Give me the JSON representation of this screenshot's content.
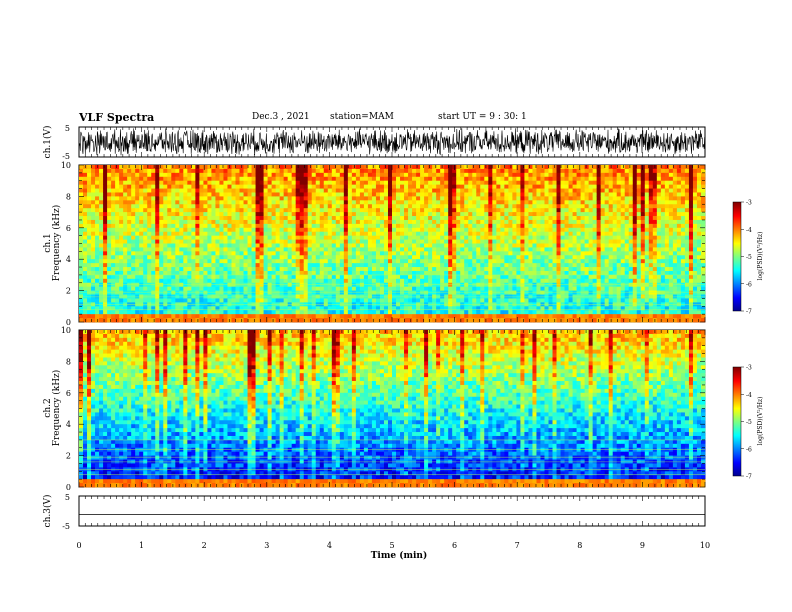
{
  "header": {
    "title": "VLF Spectra",
    "date": "Dec.3 , 2021",
    "station": "station=MAM",
    "start": "start UT = 9 : 30: 1"
  },
  "chart_data": [
    {
      "type": "line",
      "panel": "ch1-waveform",
      "ylabel": "ch.1(V)",
      "yticks": [
        "5",
        "-5"
      ],
      "ylim": [
        -5,
        5
      ],
      "xlim": [
        0,
        10
      ],
      "signal": "saturated broadband noise, amplitude about +/-5 V over full interval",
      "colors": {
        "trace": "#000000"
      }
    },
    {
      "type": "heatmap",
      "panel": "ch1-spectrogram",
      "ylabel_top": "ch.1",
      "ylabel": "Frequency (kHz)",
      "yticks": [
        "0",
        "2",
        "4",
        "6",
        "8",
        "10"
      ],
      "ylim": [
        0,
        10
      ],
      "xlim": [
        0,
        10
      ],
      "colorbar": {
        "label": "log(PSD)(V²/Hz)",
        "ticks": [
          "-3",
          "-4",
          "-5",
          "-6",
          "-7"
        ],
        "range": [
          -7,
          -3
        ]
      },
      "description_levels": {
        "low_freq_band": -5.5,
        "mid": -5.0,
        "high_freq": -4.0
      }
    },
    {
      "type": "heatmap",
      "panel": "ch2-spectrogram",
      "ylabel_top": "ch.2",
      "ylabel": "Frequency (kHz)",
      "yticks": [
        "0",
        "2",
        "4",
        "6",
        "8",
        "10"
      ],
      "ylim": [
        0,
        10
      ],
      "xlim": [
        0,
        10
      ],
      "colorbar": {
        "label": "log(PSD)(V²/Hz)",
        "ticks": [
          "-3",
          "-4",
          "-5",
          "-6",
          "-7"
        ],
        "range": [
          -7,
          -3
        ]
      },
      "description_levels": {
        "low_freq_band": -6.3,
        "mid": -5.3,
        "high_freq": -4.0
      }
    },
    {
      "type": "line",
      "panel": "ch3-waveform",
      "ylabel": "ch.3(V)",
      "yticks": [
        "5",
        "-5"
      ],
      "ylim": [
        -5,
        5
      ],
      "xlim": [
        0,
        10
      ],
      "x": [
        0,
        10
      ],
      "y": [
        -1.2,
        -1.2
      ],
      "colors": {
        "trace": "#000000"
      }
    }
  ],
  "xaxis": {
    "label": "Time (min)",
    "ticks": [
      "0",
      "1",
      "2",
      "3",
      "4",
      "5",
      "6",
      "7",
      "8",
      "9",
      "10"
    ],
    "range": [
      0,
      10
    ]
  }
}
